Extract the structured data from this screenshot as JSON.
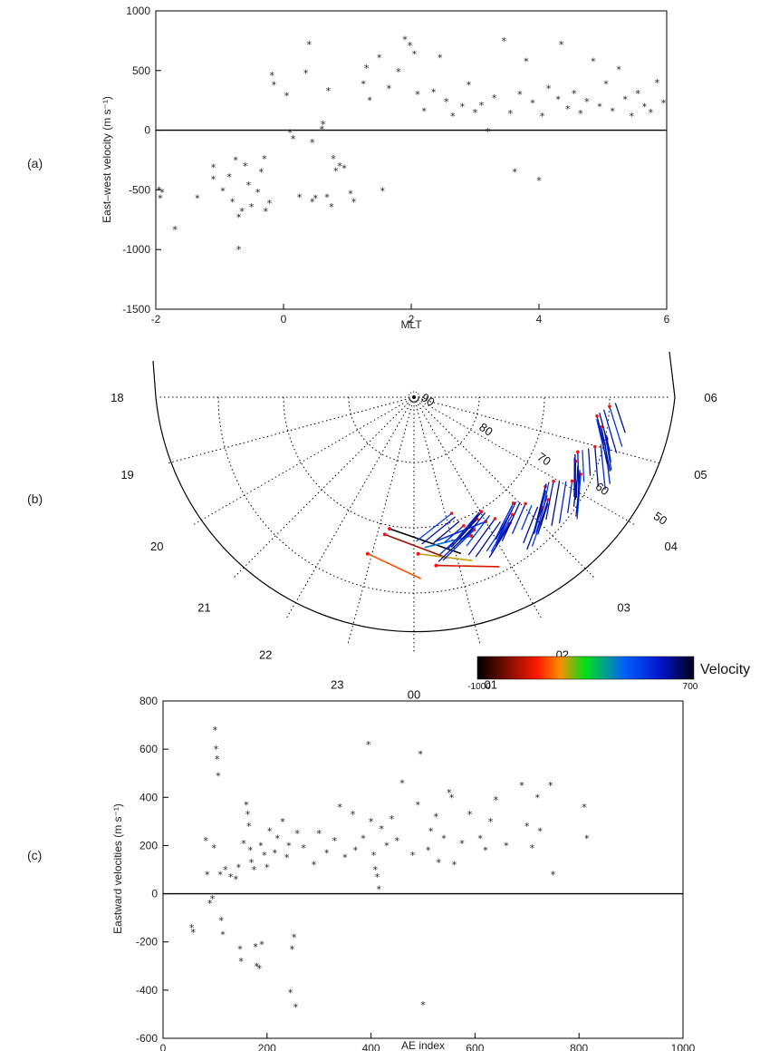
{
  "panels": {
    "a": "(a)",
    "b": "(b)",
    "c": "(c)"
  },
  "chart_data": [
    {
      "type": "scatter",
      "panel": "(a)",
      "xlabel": "MLT",
      "ylabel": "East–west velocity (m s⁻¹)",
      "xlim": [
        -2,
        6
      ],
      "ylim": [
        -1500,
        1000
      ],
      "xticks": [
        "-2",
        "0",
        "2",
        "4",
        "6"
      ],
      "yticks": [
        "1000",
        "500",
        "0",
        "-500",
        "-1000",
        "-1500"
      ],
      "marker": "*",
      "points": [
        [
          -1.95,
          -500
        ],
        [
          -1.93,
          -570
        ],
        [
          -1.9,
          -520
        ],
        [
          -1.7,
          -830
        ],
        [
          -1.35,
          -570
        ],
        [
          -1.1,
          -310
        ],
        [
          -1.1,
          -410
        ],
        [
          -0.95,
          -510
        ],
        [
          -0.85,
          -390
        ],
        [
          -0.8,
          -600
        ],
        [
          -0.75,
          -250
        ],
        [
          -0.7,
          -730
        ],
        [
          -0.7,
          -1000
        ],
        [
          -0.65,
          -680
        ],
        [
          -0.6,
          -300
        ],
        [
          -0.55,
          -460
        ],
        [
          -0.5,
          -640
        ],
        [
          -0.4,
          -520
        ],
        [
          -0.35,
          -350
        ],
        [
          -0.3,
          -240
        ],
        [
          -0.28,
          -680
        ],
        [
          -0.22,
          -610
        ],
        [
          -0.18,
          460
        ],
        [
          -0.15,
          380
        ],
        [
          0.05,
          290
        ],
        [
          0.1,
          -20
        ],
        [
          0.15,
          -70
        ],
        [
          0.25,
          -560
        ],
        [
          0.35,
          480
        ],
        [
          0.4,
          720
        ],
        [
          0.45,
          -100
        ],
        [
          0.45,
          -600
        ],
        [
          0.5,
          -570
        ],
        [
          0.6,
          10
        ],
        [
          0.62,
          50
        ],
        [
          0.68,
          -560
        ],
        [
          0.7,
          330
        ],
        [
          0.75,
          -640
        ],
        [
          0.78,
          -240
        ],
        [
          0.82,
          -340
        ],
        [
          0.88,
          -300
        ],
        [
          0.95,
          -320
        ],
        [
          1.05,
          -530
        ],
        [
          1.1,
          -600
        ],
        [
          1.25,
          390
        ],
        [
          1.3,
          520
        ],
        [
          1.35,
          250
        ],
        [
          1.5,
          610
        ],
        [
          1.55,
          -510
        ],
        [
          1.65,
          350
        ],
        [
          1.8,
          490
        ],
        [
          1.9,
          760
        ],
        [
          1.98,
          710
        ],
        [
          2.05,
          640
        ],
        [
          2.1,
          300
        ],
        [
          2.2,
          160
        ],
        [
          2.35,
          320
        ],
        [
          2.45,
          610
        ],
        [
          2.55,
          240
        ],
        [
          2.65,
          120
        ],
        [
          2.8,
          200
        ],
        [
          2.9,
          380
        ],
        [
          3.0,
          150
        ],
        [
          3.1,
          210
        ],
        [
          3.2,
          -10
        ],
        [
          3.3,
          270
        ],
        [
          3.45,
          750
        ],
        [
          3.55,
          140
        ],
        [
          3.62,
          -350
        ],
        [
          3.7,
          300
        ],
        [
          3.8,
          580
        ],
        [
          3.9,
          230
        ],
        [
          4.0,
          -420
        ],
        [
          4.05,
          120
        ],
        [
          4.15,
          350
        ],
        [
          4.3,
          260
        ],
        [
          4.35,
          720
        ],
        [
          4.45,
          180
        ],
        [
          4.55,
          310
        ],
        [
          4.65,
          140
        ],
        [
          4.75,
          240
        ],
        [
          4.85,
          580
        ],
        [
          4.95,
          200
        ],
        [
          5.05,
          390
        ],
        [
          5.15,
          160
        ],
        [
          5.25,
          510
        ],
        [
          5.35,
          260
        ],
        [
          5.45,
          120
        ],
        [
          5.55,
          310
        ],
        [
          5.65,
          200
        ],
        [
          5.75,
          150
        ],
        [
          5.85,
          400
        ],
        [
          5.95,
          230
        ]
      ]
    },
    {
      "type": "polar-vector-map",
      "panel": "(b)",
      "mlt_labels": [
        "18",
        "19",
        "20",
        "21",
        "22",
        "23",
        "00",
        "01",
        "02",
        "03",
        "04",
        "05",
        "06"
      ],
      "latitude_labels": [
        "90",
        "80",
        "70",
        "60",
        "50"
      ],
      "colorbar": {
        "label": "Velocity",
        "min": "-1000",
        "max": "700"
      },
      "vectors": [
        {
          "mlt": 23.3,
          "lat": 69.5,
          "v": -1000
        },
        {
          "mlt": 23.2,
          "lat": 68.5,
          "v": -700
        },
        {
          "mlt": 22.9,
          "lat": 65,
          "v": -450
        },
        {
          "mlt": 0.5,
          "lat": 64,
          "v": -600
        },
        {
          "mlt": 0.1,
          "lat": 66,
          "v": -300
        },
        {
          "mlt": 1.5,
          "lat": 67,
          "v": 100
        },
        {
          "mlt": 2.0,
          "lat": 68,
          "v": 300
        }
      ]
    },
    {
      "type": "scatter",
      "panel": "(c)",
      "xlabel": "AE index",
      "ylabel": "Eastward velocities (m s⁻¹)",
      "xlim": [
        0,
        1000
      ],
      "ylim": [
        -600,
        800
      ],
      "xticks": [
        "0",
        "200",
        "400",
        "600",
        "800",
        "1000"
      ],
      "yticks": [
        "800",
        "600",
        "400",
        "200",
        "0",
        "-200",
        "-400",
        "-600"
      ],
      "marker": "*",
      "points": [
        [
          55,
          -140
        ],
        [
          58,
          -160
        ],
        [
          82,
          220
        ],
        [
          85,
          80
        ],
        [
          90,
          -40
        ],
        [
          95,
          -20
        ],
        [
          98,
          190
        ],
        [
          100,
          680
        ],
        [
          102,
          600
        ],
        [
          104,
          560
        ],
        [
          106,
          490
        ],
        [
          110,
          80
        ],
        [
          112,
          -110
        ],
        [
          115,
          -170
        ],
        [
          120,
          100
        ],
        [
          130,
          70
        ],
        [
          140,
          60
        ],
        [
          145,
          110
        ],
        [
          148,
          -230
        ],
        [
          150,
          -280
        ],
        [
          155,
          210
        ],
        [
          160,
          370
        ],
        [
          163,
          330
        ],
        [
          165,
          280
        ],
        [
          168,
          180
        ],
        [
          170,
          130
        ],
        [
          175,
          100
        ],
        [
          178,
          -220
        ],
        [
          180,
          -300
        ],
        [
          185,
          -310
        ],
        [
          188,
          200
        ],
        [
          190,
          -210
        ],
        [
          195,
          160
        ],
        [
          200,
          110
        ],
        [
          205,
          260
        ],
        [
          215,
          170
        ],
        [
          220,
          230
        ],
        [
          230,
          300
        ],
        [
          238,
          150
        ],
        [
          242,
          200
        ],
        [
          245,
          -410
        ],
        [
          248,
          -230
        ],
        [
          252,
          -180
        ],
        [
          255,
          -470
        ],
        [
          258,
          250
        ],
        [
          270,
          190
        ],
        [
          290,
          120
        ],
        [
          300,
          250
        ],
        [
          315,
          170
        ],
        [
          330,
          220
        ],
        [
          340,
          360
        ],
        [
          350,
          150
        ],
        [
          365,
          330
        ],
        [
          370,
          180
        ],
        [
          385,
          230
        ],
        [
          395,
          620
        ],
        [
          400,
          300
        ],
        [
          405,
          160
        ],
        [
          408,
          100
        ],
        [
          412,
          70
        ],
        [
          415,
          20
        ],
        [
          420,
          270
        ],
        [
          430,
          200
        ],
        [
          440,
          310
        ],
        [
          450,
          220
        ],
        [
          460,
          460
        ],
        [
          480,
          160
        ],
        [
          490,
          370
        ],
        [
          495,
          580
        ],
        [
          500,
          -460
        ],
        [
          510,
          180
        ],
        [
          515,
          260
        ],
        [
          525,
          320
        ],
        [
          530,
          130
        ],
        [
          540,
          230
        ],
        [
          550,
          420
        ],
        [
          555,
          400
        ],
        [
          560,
          120
        ],
        [
          575,
          210
        ],
        [
          590,
          330
        ],
        [
          610,
          230
        ],
        [
          620,
          180
        ],
        [
          630,
          300
        ],
        [
          640,
          390
        ],
        [
          660,
          200
        ],
        [
          690,
          450
        ],
        [
          700,
          280
        ],
        [
          710,
          190
        ],
        [
          720,
          400
        ],
        [
          725,
          260
        ],
        [
          745,
          450
        ],
        [
          750,
          80
        ],
        [
          810,
          360
        ],
        [
          815,
          230
        ]
      ]
    }
  ]
}
